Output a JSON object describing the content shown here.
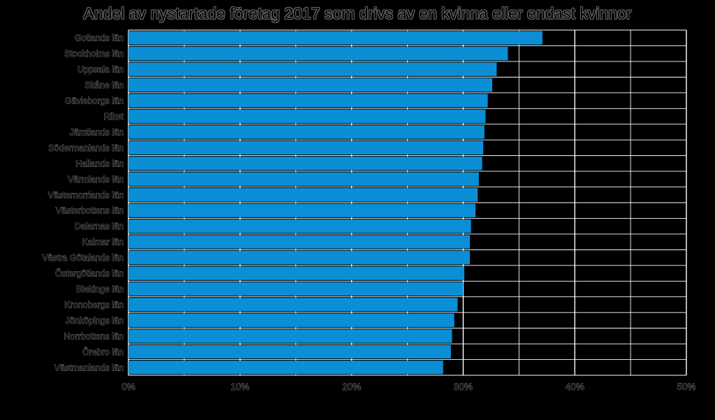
{
  "chart_data": {
    "type": "bar",
    "orientation": "horizontal",
    "title": "Andel av nystartade företag 2017 som drivs av en kvinna eller endast kvinnor",
    "xlabel": "",
    "ylabel": "",
    "xlim": [
      0,
      50
    ],
    "x_ticks": [
      "0%",
      "10%",
      "20%",
      "30%",
      "40%",
      "50%"
    ],
    "x_tick_values": [
      0,
      10,
      20,
      30,
      40,
      50
    ],
    "grid": true,
    "legend": "none",
    "bar_color": "#0a8fd6",
    "grid_color": "#ffffff",
    "categories": [
      "Gotlands län",
      "Stockholms län",
      "Uppsala län",
      "Skåne län",
      "Gävleborgs län",
      "Riket",
      "Jämtlands län",
      "Södermanlands län",
      "Hallands län",
      "Värmlands län",
      "Västernorrlands län",
      "Västerbottens län",
      "Dalarnas län",
      "Kalmar län",
      "Västra Götalands län",
      "Östergötlands län",
      "Blekinge län",
      "Kronobergs län",
      "Jönköpings län",
      "Norrbottens län",
      "Örebro län",
      "Västmanlands län"
    ],
    "values": [
      37.1,
      34.0,
      33.0,
      32.6,
      32.2,
      32.0,
      31.9,
      31.8,
      31.7,
      31.4,
      31.3,
      31.1,
      30.7,
      30.6,
      30.6,
      30.1,
      30.0,
      29.5,
      29.2,
      29.0,
      28.9,
      28.2
    ]
  }
}
